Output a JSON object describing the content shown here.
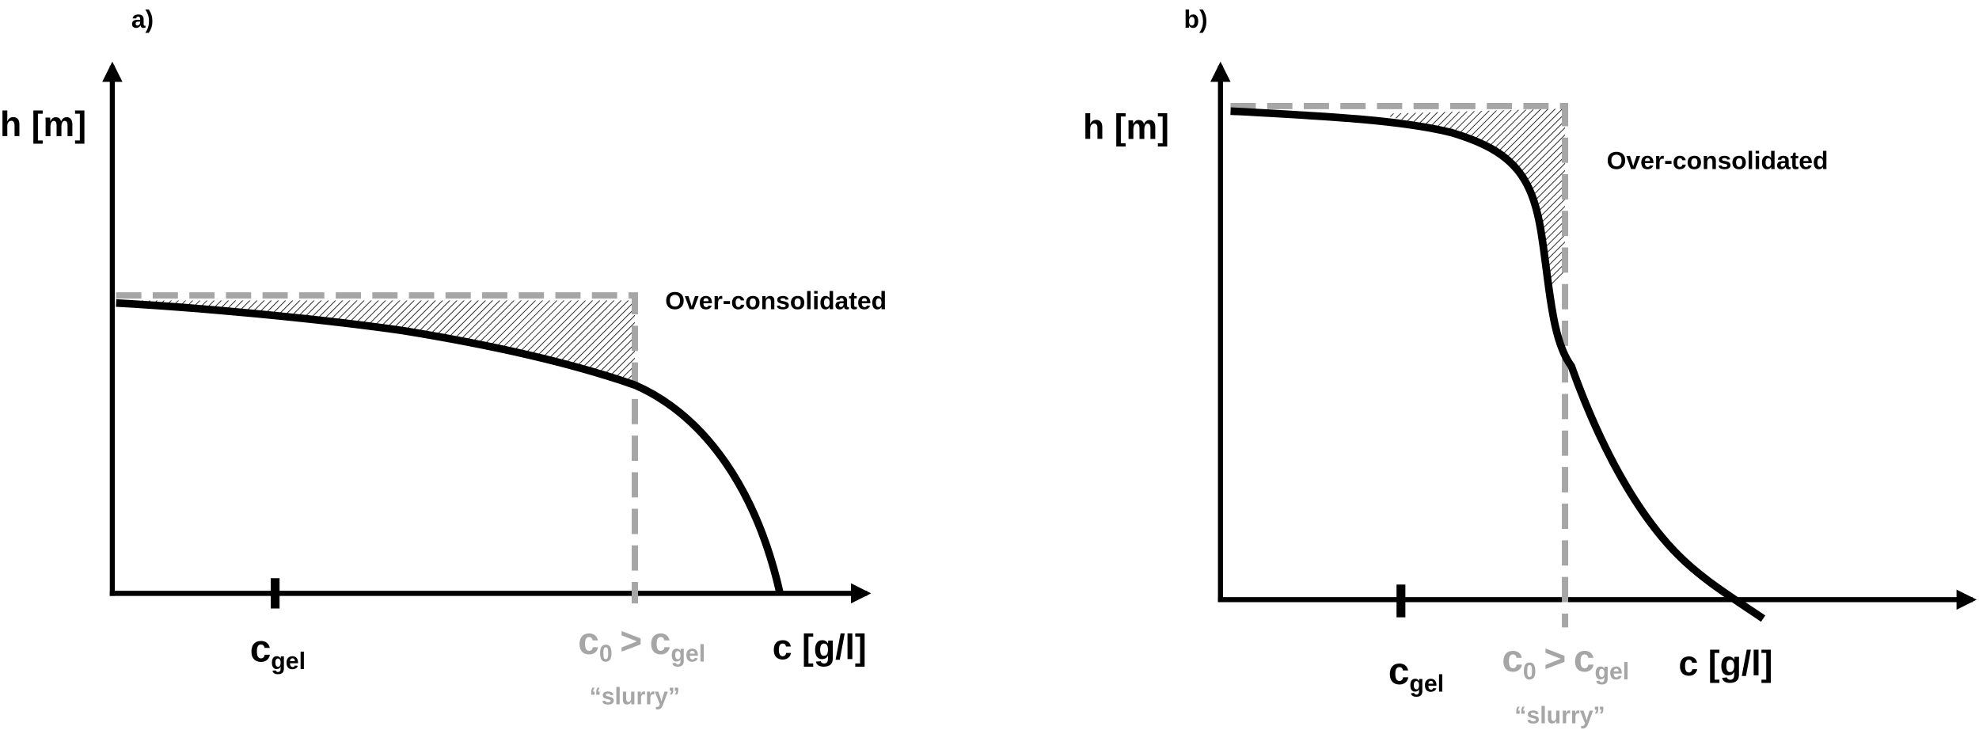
{
  "panels": [
    {
      "label": "a)",
      "y_axis": "h [m]",
      "x_axis": "c [g/l]",
      "region_label": "Over-consolidated",
      "gel_marker": {
        "main": "c",
        "sub": "gel"
      },
      "initial": {
        "main": "c",
        "sub": "0",
        "relation": ">",
        "main2": "c",
        "sub2": "gel",
        "note": "“slurry”"
      }
    },
    {
      "label": "b)",
      "y_axis": "h [m]",
      "x_axis": "c [g/l]",
      "region_label": "Over-consolidated",
      "gel_marker": {
        "main": "c",
        "sub": "gel"
      },
      "initial": {
        "main": "c",
        "sub": "0",
        "relation": ">",
        "main2": "c",
        "sub2": "gel",
        "note": "“slurry”"
      }
    }
  ]
}
